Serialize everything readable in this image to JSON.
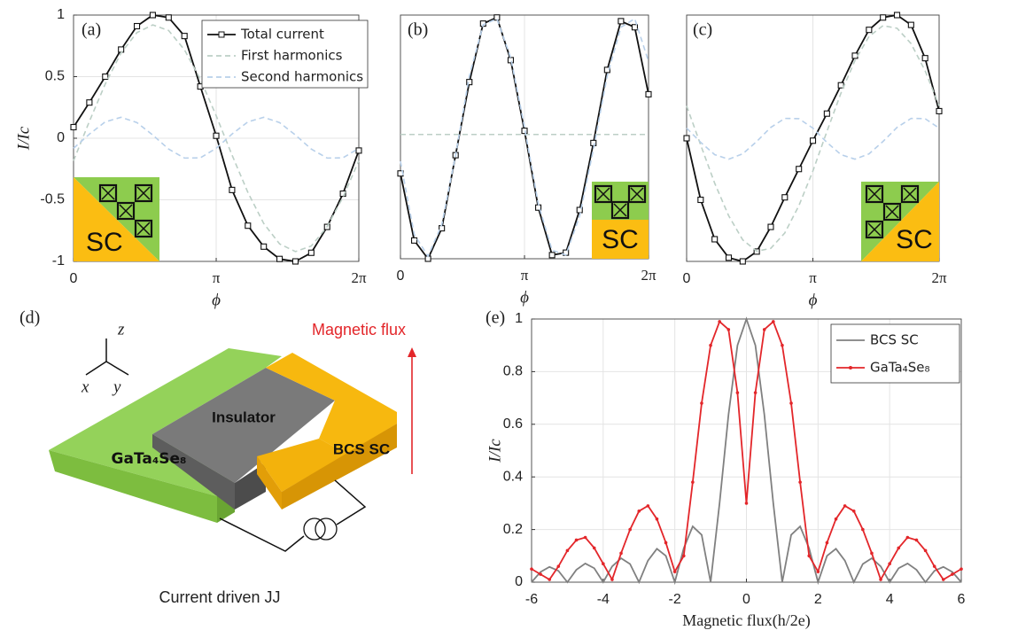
{
  "chart_data": [
    {
      "type": "line",
      "label": "(a)",
      "inset_label": "SC",
      "xlabel": "ϕ",
      "ylabel": "I/Ic",
      "x": [
        0,
        0.349,
        0.698,
        1.047,
        1.396,
        1.745,
        2.094,
        2.443,
        2.793,
        3.142,
        3.491,
        3.84,
        4.189,
        4.538,
        4.887,
        5.236,
        5.585,
        5.934,
        6.283
      ],
      "xlim": [
        0,
        6.283
      ],
      "xticks": [
        0,
        {
          "value": 3.142,
          "label": "π"
        },
        {
          "value": 6.283,
          "label": "2π"
        }
      ],
      "ylim": [
        -1,
        1
      ],
      "yticks": [
        1,
        0.5,
        0,
        -0.5,
        -1
      ],
      "grid": true,
      "legend": "upper right",
      "series": [
        {
          "name": "Total current",
          "color": "#111111",
          "marker": "square",
          "dashed": false,
          "values": [
            0.09,
            0.29,
            0.5,
            0.72,
            0.91,
            1.0,
            0.98,
            0.83,
            0.42,
            0.02,
            -0.42,
            -0.71,
            -0.88,
            -0.98,
            -1.0,
            -0.93,
            -0.72,
            -0.45,
            -0.1
          ]
        },
        {
          "name": "First harmonics",
          "color": "#bccfc6",
          "dashed": true,
          "values": [
            -0.183,
            0.137,
            0.44,
            0.692,
            0.858,
            0.92,
            0.875,
            0.718,
            0.479,
            0.183,
            -0.137,
            -0.44,
            -0.692,
            -0.858,
            -0.92,
            -0.875,
            -0.718,
            -0.479,
            -0.183
          ]
        },
        {
          "name": "Second harmonics",
          "color": "#b8d0ea",
          "dashed": true,
          "values": [
            -0.082,
            0.033,
            0.133,
            0.17,
            0.127,
            0.026,
            -0.088,
            -0.161,
            -0.159,
            -0.082,
            0.034,
            0.133,
            0.17,
            0.127,
            0.026,
            -0.088,
            -0.161,
            -0.159,
            -0.082
          ]
        }
      ]
    },
    {
      "type": "line",
      "label": "(b)",
      "inset_label": "SC",
      "xlabel": "ϕ",
      "x": [
        0,
        0.349,
        0.698,
        1.047,
        1.396,
        1.745,
        2.094,
        2.443,
        2.793,
        3.142,
        3.491,
        3.84,
        4.189,
        4.538,
        4.887,
        5.236,
        5.585,
        5.934,
        6.283
      ],
      "xlim": [
        0,
        6.283
      ],
      "xticks": [
        0,
        {
          "value": 3.142,
          "label": "π"
        },
        {
          "value": 6.283,
          "label": "2π"
        }
      ],
      "ylim": [
        -1,
        1
      ],
      "grid": true,
      "series": [
        {
          "color": "#111111",
          "marker": "square",
          "dashed": false,
          "values": [
            -0.3,
            -0.85,
            -1.0,
            -0.75,
            -0.15,
            0.45,
            0.93,
            0.98,
            0.63,
            0.05,
            -0.58,
            -0.97,
            -0.95,
            -0.6,
            -0.05,
            0.55,
            0.95,
            0.9,
            0.35
          ]
        },
        {
          "color": "#bccfc6",
          "dashed": true,
          "values": [
            0.02,
            0.02,
            0.02,
            0.02,
            0.02,
            0.02,
            0.02,
            0.02,
            0.02,
            0.02,
            0.02,
            0.02,
            0.02,
            0.02,
            0.02,
            0.02,
            0.02,
            0.02,
            0.02
          ]
        },
        {
          "color": "#b8d0ea",
          "dashed": true,
          "values": [
            -0.2,
            -0.8,
            -0.98,
            -0.72,
            -0.15,
            0.5,
            0.92,
            0.97,
            0.65,
            0.08,
            -0.55,
            -0.93,
            -0.97,
            -0.65,
            -0.1,
            0.5,
            0.9,
            0.97,
            0.62
          ]
        }
      ]
    },
    {
      "type": "line",
      "label": "(c)",
      "inset_label": "SC",
      "xlabel": "ϕ",
      "x": [
        0,
        0.349,
        0.698,
        1.047,
        1.396,
        1.745,
        2.094,
        2.443,
        2.793,
        3.142,
        3.491,
        3.84,
        4.189,
        4.538,
        4.887,
        5.236,
        5.585,
        5.934,
        6.283
      ],
      "xlim": [
        0,
        6.283
      ],
      "xticks": [
        0,
        {
          "value": 3.142,
          "label": "π"
        },
        {
          "value": 6.283,
          "label": "2π"
        }
      ],
      "ylim": [
        -1,
        1
      ],
      "grid": true,
      "series": [
        {
          "color": "#111111",
          "marker": "square",
          "dashed": false,
          "values": [
            0.0,
            -0.5,
            -0.82,
            -0.97,
            -1.0,
            -0.92,
            -0.72,
            -0.48,
            -0.25,
            -0.02,
            0.2,
            0.43,
            0.67,
            0.88,
            0.98,
            1.0,
            0.92,
            0.65,
            0.22
          ]
        },
        {
          "color": "#bccfc6",
          "dashed": true,
          "values": [
            0.263,
            -0.054,
            -0.365,
            -0.63,
            -0.825,
            -0.917,
            -0.894,
            -0.769,
            -0.548,
            -0.266,
            0.055,
            0.366,
            0.631,
            0.826,
            0.914,
            0.893,
            0.768,
            0.548,
            0.263
          ]
        },
        {
          "color": "#b8d0ea",
          "dashed": true,
          "values": [
            0.082,
            -0.033,
            -0.133,
            -0.17,
            -0.127,
            -0.026,
            0.088,
            0.161,
            0.159,
            0.082,
            -0.034,
            -0.133,
            -0.17,
            -0.127,
            -0.026,
            0.088,
            0.161,
            0.159,
            0.082
          ]
        }
      ]
    },
    {
      "type": "line",
      "label": "(e)",
      "xlabel": "Magnetic flux(h/2e)",
      "ylabel": "I/Ic",
      "x": [
        -6,
        -5.75,
        -5.5,
        -5.25,
        -5,
        -4.75,
        -4.5,
        -4.25,
        -4,
        -3.75,
        -3.5,
        -3.25,
        -3,
        -2.75,
        -2.5,
        -2.25,
        -2,
        -1.75,
        -1.5,
        -1.25,
        -1,
        -0.75,
        -0.5,
        -0.25,
        0,
        0.25,
        0.5,
        0.75,
        1,
        1.25,
        1.5,
        1.75,
        2,
        2.25,
        2.5,
        2.75,
        3,
        3.25,
        3.5,
        3.75,
        4,
        4.25,
        4.5,
        4.75,
        5,
        5.25,
        5.5,
        5.75,
        6
      ],
      "xlim": [
        -6,
        6
      ],
      "xticks": [
        -6,
        -4,
        -2,
        0,
        2,
        4,
        6
      ],
      "ylim": [
        0,
        1
      ],
      "yticks": [
        0,
        0.2,
        0.4,
        0.6,
        0.8,
        1
      ],
      "grid": true,
      "legend": "upper right",
      "series": [
        {
          "name": "BCS SC",
          "color": "#808080",
          "dashed": false,
          "values": [
            0,
            0.039,
            0.058,
            0.043,
            0,
            0.047,
            0.071,
            0.053,
            0,
            0.06,
            0.091,
            0.069,
            0,
            0.082,
            0.127,
            0.1,
            0,
            0.129,
            0.212,
            0.18,
            0,
            0.3,
            0.637,
            0.9,
            1,
            0.9,
            0.637,
            0.3,
            0,
            0.18,
            0.212,
            0.129,
            0,
            0.1,
            0.127,
            0.082,
            0,
            0.069,
            0.091,
            0.06,
            0,
            0.053,
            0.071,
            0.047,
            0,
            0.043,
            0.058,
            0.039,
            0
          ]
        },
        {
          "name": "GaTa₄Se₈",
          "color": "#e3262a",
          "marker": "dot",
          "dashed": false,
          "values": [
            0.05,
            0.03,
            0.01,
            0.06,
            0.12,
            0.16,
            0.17,
            0.13,
            0.07,
            0.01,
            0.11,
            0.2,
            0.27,
            0.29,
            0.24,
            0.15,
            0.04,
            0.1,
            0.38,
            0.68,
            0.9,
            0.99,
            0.96,
            0.72,
            0.3,
            0.72,
            0.96,
            0.99,
            0.9,
            0.68,
            0.38,
            0.1,
            0.04,
            0.15,
            0.24,
            0.29,
            0.27,
            0.2,
            0.11,
            0.01,
            0.07,
            0.13,
            0.17,
            0.16,
            0.12,
            0.06,
            0.01,
            0.03,
            0.05
          ]
        }
      ]
    }
  ],
  "diagram": {
    "label": "(d)",
    "axis_z": "z",
    "axis_x": "x",
    "axis_y": "y",
    "flux": "Magnetic flux",
    "insulator": "Insulator",
    "superconductor": "BCS SC",
    "material": "GaTa₄Se₈",
    "caption": "Current driven JJ"
  }
}
